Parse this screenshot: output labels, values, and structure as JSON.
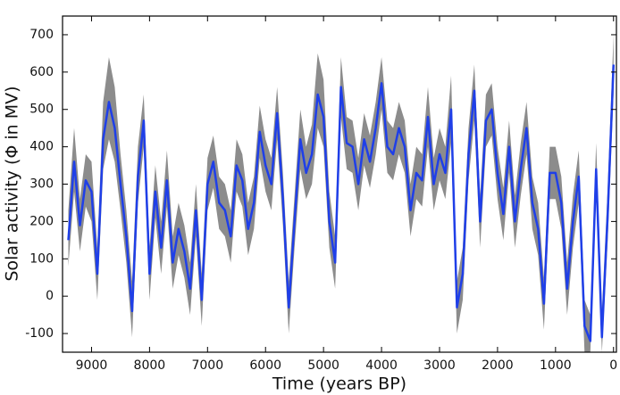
{
  "chart_data": {
    "type": "line",
    "x_label": "Time (years BP)",
    "y_label": "Solar activity (Φ in MV)",
    "x": [
      9400,
      9300,
      9200,
      9100,
      9000,
      8900,
      8800,
      8700,
      8600,
      8500,
      8400,
      8300,
      8200,
      8100,
      8000,
      7900,
      7800,
      7700,
      7600,
      7500,
      7400,
      7300,
      7200,
      7100,
      7000,
      6900,
      6800,
      6700,
      6600,
      6500,
      6400,
      6300,
      6200,
      6100,
      6000,
      5900,
      5800,
      5700,
      5600,
      5500,
      5400,
      5300,
      5200,
      5100,
      5000,
      4900,
      4800,
      4700,
      4600,
      4500,
      4400,
      4300,
      4200,
      4100,
      4000,
      3900,
      3800,
      3700,
      3600,
      3500,
      3400,
      3300,
      3200,
      3100,
      3000,
      2900,
      2800,
      2700,
      2600,
      2500,
      2400,
      2300,
      2200,
      2100,
      2000,
      1900,
      1800,
      1700,
      1600,
      1500,
      1400,
      1300,
      1200,
      1100,
      1000,
      900,
      800,
      700,
      600,
      500,
      400,
      300,
      200,
      100,
      0
    ],
    "series": [
      {
        "color": "#1f3fe8",
        "values": [
          150,
          360,
          190,
          310,
          280,
          60,
          420,
          520,
          450,
          300,
          160,
          -40,
          320,
          470,
          60,
          280,
          130,
          310,
          90,
          180,
          120,
          20,
          230,
          -10,
          300,
          360,
          250,
          230,
          160,
          350,
          310,
          180,
          250,
          440,
          350,
          300,
          490,
          260,
          -30,
          200,
          420,
          330,
          380,
          540,
          480,
          200,
          90,
          560,
          410,
          400,
          300,
          420,
          360,
          450,
          570,
          400,
          380,
          450,
          400,
          230,
          330,
          310,
          480,
          300,
          380,
          330,
          500,
          -30,
          60,
          380,
          550,
          200,
          470,
          500,
          330,
          220,
          400,
          200,
          340,
          450,
          250,
          180,
          -20,
          330,
          330,
          250,
          20,
          200,
          320,
          -80,
          -120,
          340,
          -110,
          220,
          620
        ]
      }
    ],
    "band": {
      "color": "#8c8c8c",
      "upper": [
        230,
        450,
        260,
        380,
        360,
        130,
        520,
        640,
        560,
        380,
        230,
        40,
        400,
        540,
        130,
        350,
        200,
        390,
        160,
        250,
        190,
        90,
        300,
        60,
        370,
        430,
        320,
        300,
        230,
        420,
        380,
        250,
        320,
        510,
        420,
        370,
        560,
        330,
        40,
        270,
        500,
        400,
        460,
        650,
        580,
        280,
        160,
        640,
        480,
        470,
        370,
        490,
        430,
        520,
        640,
        470,
        450,
        520,
        470,
        300,
        400,
        380,
        560,
        370,
        450,
        400,
        590,
        40,
        130,
        450,
        620,
        270,
        540,
        570,
        400,
        290,
        470,
        270,
        410,
        520,
        320,
        250,
        50,
        400,
        400,
        320,
        90,
        270,
        390,
        -10,
        -50,
        410,
        -40,
        290,
        700
      ],
      "lower": [
        80,
        280,
        120,
        240,
        200,
        -10,
        340,
        420,
        360,
        230,
        90,
        -110,
        250,
        400,
        -10,
        210,
        60,
        240,
        20,
        110,
        50,
        -50,
        160,
        -80,
        230,
        290,
        180,
        160,
        90,
        280,
        240,
        110,
        180,
        370,
        280,
        230,
        420,
        190,
        -100,
        130,
        340,
        260,
        300,
        450,
        400,
        130,
        20,
        480,
        340,
        330,
        230,
        350,
        290,
        380,
        500,
        330,
        310,
        380,
        330,
        160,
        260,
        240,
        400,
        230,
        310,
        260,
        410,
        -100,
        -10,
        310,
        470,
        130,
        400,
        430,
        260,
        150,
        330,
        130,
        270,
        380,
        180,
        110,
        -90,
        260,
        260,
        180,
        -50,
        130,
        250,
        -150,
        -150,
        270,
        -150,
        150,
        540
      ]
    },
    "xlim": [
      9500,
      -50
    ],
    "ylim": [
      -150,
      750
    ],
    "xticks": [
      9000,
      8000,
      7000,
      6000,
      5000,
      4000,
      3000,
      2000,
      1000,
      0
    ],
    "yticks": [
      700,
      600,
      500,
      400,
      300,
      200,
      100,
      0,
      -100
    ]
  }
}
